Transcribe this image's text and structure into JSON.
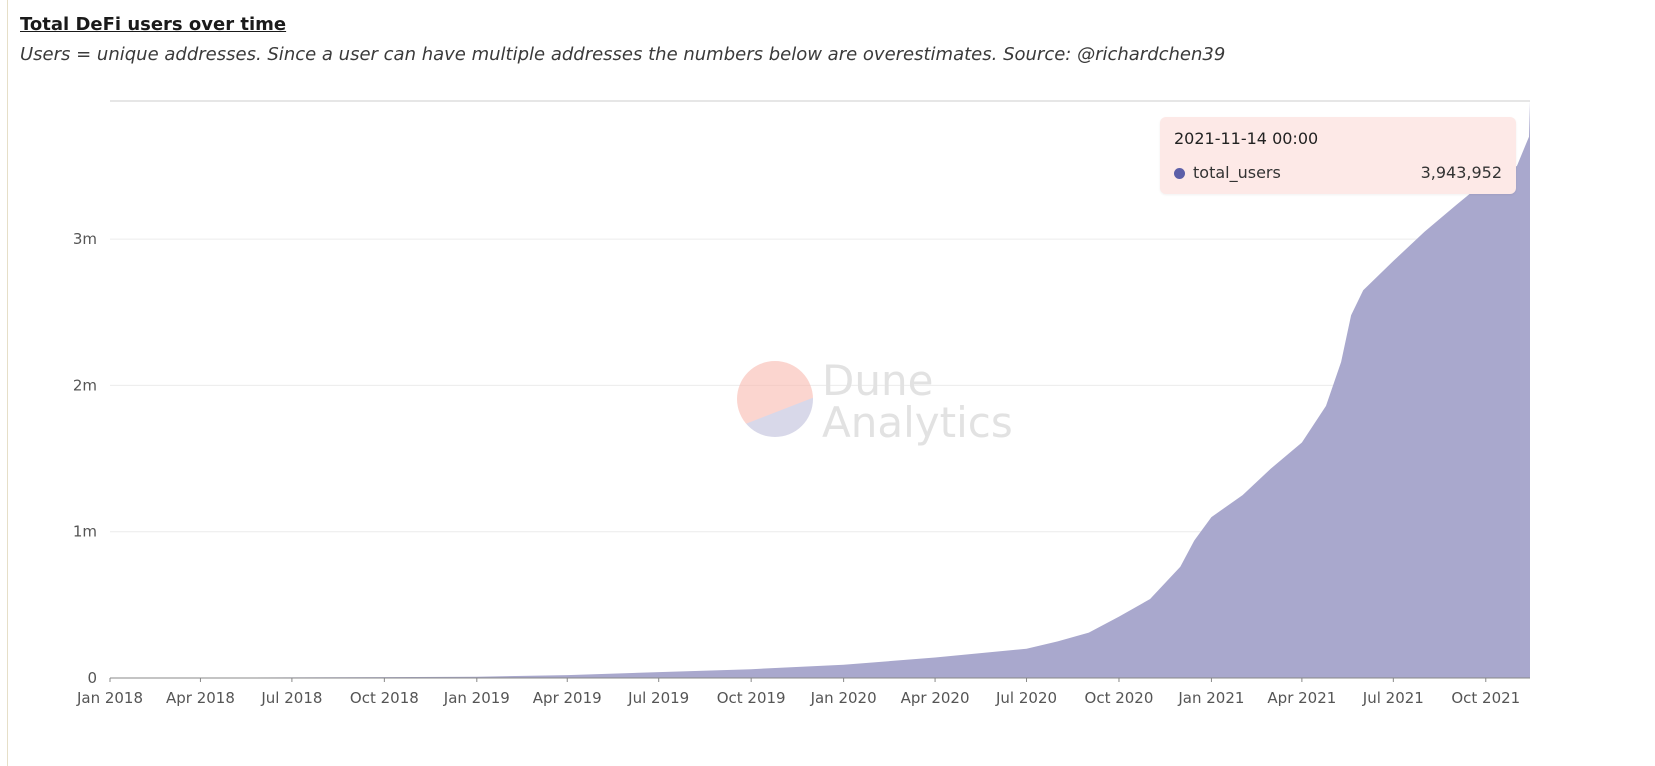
{
  "header": {
    "title": "Total DeFi users over time",
    "subtitle": "Users = unique addresses. Since a user can have multiple addresses the numbers below are overestimates. Source: @richardchen39"
  },
  "watermark": {
    "line1": "Dune",
    "line2": "Analytics"
  },
  "tooltip": {
    "date": "2021-11-14 00:00",
    "series_name": "total_users",
    "value": "3,943,952",
    "dot_color": "#5c5fa8"
  },
  "colors": {
    "area_fill": "#a9a8cd",
    "gridline": "#ececec",
    "axis_line": "#cccccc",
    "tooltip_bg": "#fde9e7"
  },
  "chart_data": {
    "type": "area",
    "title": "Total DeFi users over time",
    "subtitle": "Users = unique addresses. Since a user can have multiple addresses the numbers below are overestimates. Source: @richardchen39",
    "xlabel": "",
    "ylabel": "",
    "grid": true,
    "legend": "none",
    "x_ticks": [
      "Jan 2018",
      "Apr 2018",
      "Jul 2018",
      "Oct 2018",
      "Jan 2019",
      "Apr 2019",
      "Jul 2019",
      "Oct 2019",
      "Jan 2020",
      "Apr 2020",
      "Jul 2020",
      "Oct 2020",
      "Jan 2021",
      "Apr 2021",
      "Jul 2021",
      "Oct 2021"
    ],
    "y_ticks": [
      {
        "value": 0,
        "label": "0"
      },
      {
        "value": 1000000,
        "label": "1m"
      },
      {
        "value": 2000000,
        "label": "2m"
      },
      {
        "value": 3000000,
        "label": "3m"
      }
    ],
    "ylim": [
      0,
      3943952
    ],
    "xlim": [
      "2018-01-01",
      "2021-11-14"
    ],
    "series": [
      {
        "name": "total_users",
        "x": [
          "2018-01-01",
          "2018-04-01",
          "2018-07-01",
          "2018-10-01",
          "2019-01-01",
          "2019-04-01",
          "2019-07-01",
          "2019-10-01",
          "2020-01-01",
          "2020-04-01",
          "2020-07-01",
          "2020-08-01",
          "2020-09-01",
          "2020-10-01",
          "2020-11-01",
          "2020-12-01",
          "2020-12-15",
          "2021-01-01",
          "2021-02-01",
          "2021-03-01",
          "2021-04-01",
          "2021-04-25",
          "2021-05-10",
          "2021-05-20",
          "2021-06-01",
          "2021-07-01",
          "2021-08-01",
          "2021-09-01",
          "2021-10-01",
          "2021-11-01",
          "2021-11-13",
          "2021-11-14"
        ],
        "y": [
          0,
          2000,
          4000,
          6000,
          9000,
          20000,
          40000,
          60000,
          90000,
          140000,
          200000,
          250000,
          310000,
          420000,
          540000,
          760000,
          940000,
          1100000,
          1250000,
          1430000,
          1610000,
          1860000,
          2160000,
          2480000,
          2650000,
          2850000,
          3050000,
          3230000,
          3400000,
          3500000,
          3700000,
          3943952
        ]
      }
    ]
  }
}
